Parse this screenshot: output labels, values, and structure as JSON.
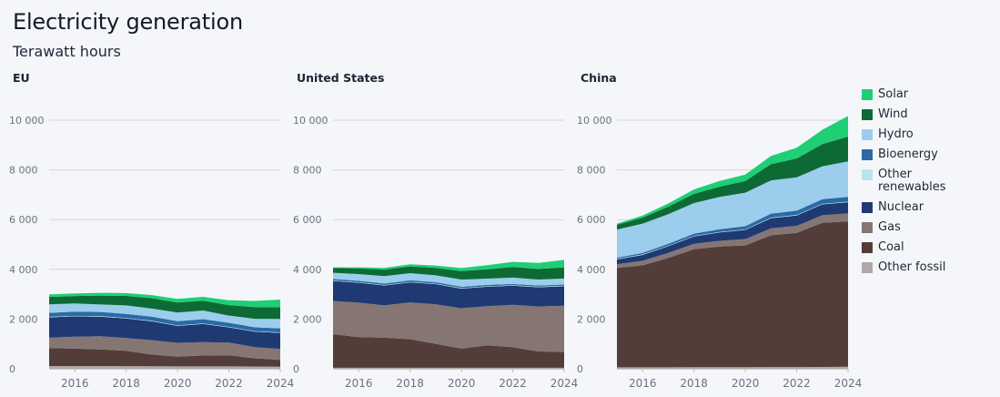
{
  "title": "Electricity generation",
  "subtitle": "Terawatt hours",
  "legend": [
    {
      "name": "Solar",
      "color": "#1fce75"
    },
    {
      "name": "Wind",
      "color": "#0d6a35"
    },
    {
      "name": "Hydro",
      "color": "#9dcdec"
    },
    {
      "name": "Bioenergy",
      "color": "#2b6aa5"
    },
    {
      "name": "Other\nrenewables",
      "color": "#b6e6ec"
    },
    {
      "name": "Nuclear",
      "color": "#1f3a72"
    },
    {
      "name": "Gas",
      "color": "#857673"
    },
    {
      "name": "Coal",
      "color": "#523d39"
    },
    {
      "name": "Other fossil",
      "color": "#b0a9a7"
    }
  ],
  "chart_data": [
    {
      "type": "area",
      "stacked": true,
      "title": "EU",
      "xlabel": "",
      "ylabel": "Terawatt hours",
      "x": [
        2015,
        2016,
        2017,
        2018,
        2019,
        2020,
        2021,
        2022,
        2023,
        2024
      ],
      "xticks": [
        "2016",
        "2018",
        "2020",
        "2022",
        "2024"
      ],
      "yticks": [
        "0",
        "2 000",
        "4 000",
        "6 000",
        "8 000",
        "10 000"
      ],
      "ylim": [
        0,
        10000
      ],
      "series": [
        {
          "name": "Other fossil",
          "values": [
            110,
            110,
            110,
            105,
            100,
            95,
            95,
            95,
            90,
            85
          ]
        },
        {
          "name": "Coal",
          "values": [
            720,
            700,
            670,
            620,
            470,
            390,
            440,
            450,
            330,
            270
          ]
        },
        {
          "name": "Gas",
          "values": [
            420,
            480,
            530,
            510,
            580,
            560,
            540,
            510,
            450,
            440
          ]
        },
        {
          "name": "Nuclear",
          "values": [
            820,
            820,
            790,
            790,
            760,
            680,
            730,
            610,
            620,
            650
          ]
        },
        {
          "name": "Other renewables",
          "values": [
            20,
            20,
            20,
            20,
            20,
            20,
            20,
            20,
            20,
            20
          ]
        },
        {
          "name": "Bioenergy",
          "values": [
            160,
            165,
            165,
            165,
            170,
            170,
            170,
            165,
            160,
            160
          ]
        },
        {
          "name": "Hydro",
          "values": [
            340,
            330,
            300,
            340,
            320,
            350,
            350,
            290,
            340,
            380
          ]
        },
        {
          "name": "Wind",
          "values": [
            300,
            300,
            360,
            380,
            420,
            400,
            390,
            420,
            470,
            480
          ]
        },
        {
          "name": "Solar",
          "values": [
            100,
            105,
            110,
            115,
            125,
            145,
            160,
            200,
            250,
            300
          ]
        }
      ]
    },
    {
      "type": "area",
      "stacked": true,
      "title": "United States",
      "xlabel": "",
      "ylabel": "Terawatt hours",
      "x": [
        2015,
        2016,
        2017,
        2018,
        2019,
        2020,
        2021,
        2022,
        2023,
        2024
      ],
      "xticks": [
        "2016",
        "2018",
        "2020",
        "2022",
        "2024"
      ],
      "yticks": [
        "0",
        "2 000",
        "4 000",
        "6 000",
        "8 000",
        "10 000"
      ],
      "ylim": [
        0,
        10000
      ],
      "series": [
        {
          "name": "Other fossil",
          "values": [
            40,
            40,
            40,
            40,
            40,
            40,
            40,
            40,
            40,
            40
          ]
        },
        {
          "name": "Coal",
          "values": [
            1350,
            1240,
            1210,
            1150,
            965,
            775,
            900,
            830,
            655,
            640
          ]
        },
        {
          "name": "Gas",
          "values": [
            1340,
            1380,
            1300,
            1480,
            1590,
            1620,
            1580,
            1700,
            1810,
            1860
          ]
        },
        {
          "name": "Nuclear",
          "values": [
            800,
            800,
            800,
            805,
            810,
            790,
            780,
            770,
            775,
            780
          ]
        },
        {
          "name": "Other renewables",
          "values": [
            20,
            20,
            20,
            20,
            20,
            20,
            20,
            20,
            20,
            20
          ]
        },
        {
          "name": "Bioenergy",
          "values": [
            60,
            60,
            60,
            60,
            60,
            55,
            55,
            50,
            50,
            50
          ]
        },
        {
          "name": "Hydro",
          "values": [
            250,
            270,
            300,
            290,
            275,
            290,
            250,
            255,
            240,
            240
          ]
        },
        {
          "name": "Wind",
          "values": [
            190,
            225,
            255,
            275,
            300,
            340,
            380,
            435,
            425,
            450
          ]
        },
        {
          "name": "Solar",
          "values": [
            30,
            45,
            70,
            85,
            95,
            120,
            160,
            200,
            240,
            300
          ]
        }
      ]
    },
    {
      "type": "area",
      "stacked": true,
      "title": "China",
      "xlabel": "",
      "ylabel": "Terawatt hours",
      "x": [
        2015,
        2016,
        2017,
        2018,
        2019,
        2020,
        2021,
        2022,
        2023,
        2024
      ],
      "xticks": [
        "2016",
        "2018",
        "2020",
        "2022",
        "2024"
      ],
      "yticks": [
        "0",
        "2 000",
        "4 000",
        "6 000",
        "8 000",
        "10 000"
      ],
      "ylim": [
        0,
        10000
      ],
      "series": [
        {
          "name": "Other fossil",
          "values": [
            60,
            60,
            60,
            65,
            65,
            65,
            70,
            70,
            75,
            80
          ]
        },
        {
          "name": "Coal",
          "values": [
            4000,
            4100,
            4400,
            4750,
            4850,
            4900,
            5300,
            5400,
            5800,
            5850
          ]
        },
        {
          "name": "Gas",
          "values": [
            150,
            180,
            200,
            210,
            230,
            250,
            280,
            280,
            300,
            320
          ]
        },
        {
          "name": "Nuclear",
          "values": [
            190,
            240,
            270,
            300,
            340,
            370,
            410,
            420,
            440,
            450
          ]
        },
        {
          "name": "Other renewables",
          "values": [
            20,
            20,
            20,
            20,
            20,
            20,
            20,
            20,
            20,
            20
          ]
        },
        {
          "name": "Bioenergy",
          "values": [
            50,
            60,
            80,
            90,
            110,
            130,
            160,
            170,
            190,
            200
          ]
        },
        {
          "name": "Hydro",
          "values": [
            1130,
            1180,
            1190,
            1230,
            1300,
            1350,
            1340,
            1340,
            1320,
            1420
          ]
        },
        {
          "name": "Wind",
          "values": [
            190,
            240,
            300,
            370,
            410,
            470,
            650,
            760,
            890,
            1000
          ]
        },
        {
          "name": "Solar",
          "values": [
            50,
            80,
            130,
            180,
            230,
            260,
            330,
            430,
            580,
            830
          ]
        }
      ]
    }
  ]
}
